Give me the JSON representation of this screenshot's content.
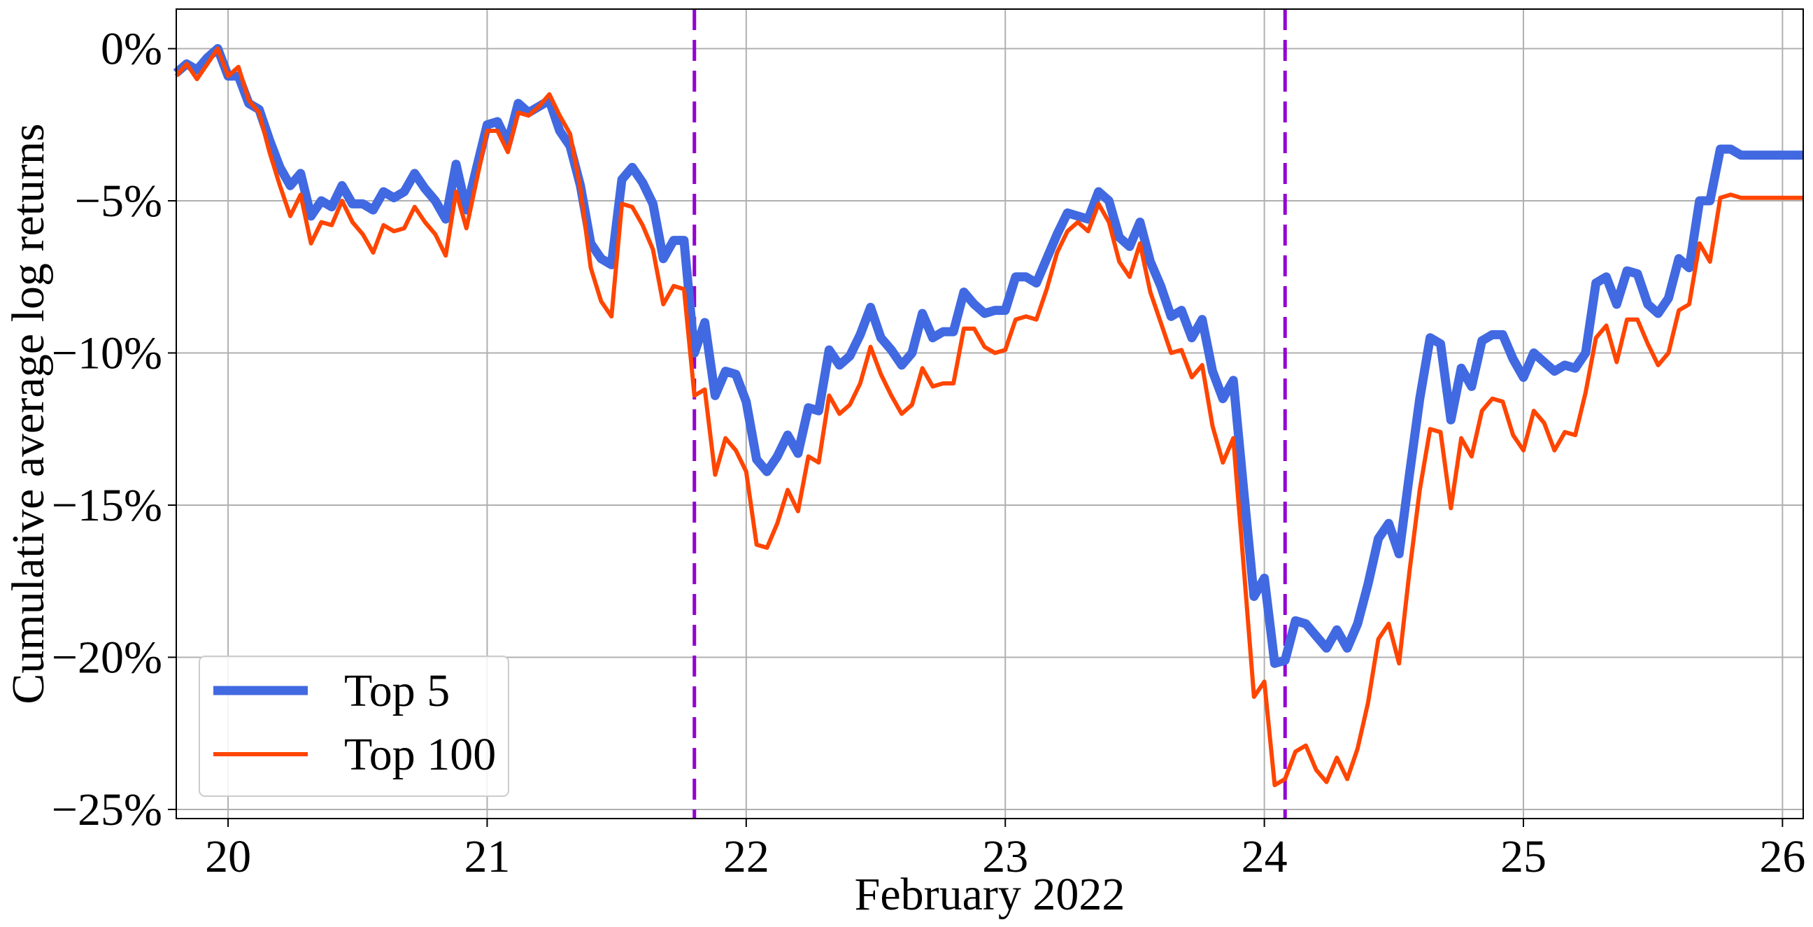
{
  "chart_data": {
    "type": "line",
    "title": "",
    "xlabel": "February 2022",
    "ylabel": "Cumulative average log returns",
    "xlim": [
      19.8,
      26.08
    ],
    "ylim": [
      -25.3,
      1.3
    ],
    "x_ticks": [
      20,
      21,
      22,
      23,
      24,
      25,
      26
    ],
    "x_tick_labels": [
      "20",
      "21",
      "22",
      "23",
      "24",
      "25",
      "26"
    ],
    "y_ticks": [
      0,
      -5,
      -10,
      -15,
      -20,
      -25
    ],
    "y_tick_labels": [
      "0%",
      "−5%",
      "−10%",
      "−15%",
      "−20%",
      "−25%"
    ],
    "grid": true,
    "legend_position": "lower-left",
    "vertical_lines": [
      21.8,
      24.08
    ],
    "series": [
      {
        "name": "Top 5",
        "color": "#4169E1",
        "points": [
          [
            19.8,
            -0.8
          ],
          [
            19.84,
            -0.5
          ],
          [
            19.88,
            -0.7
          ],
          [
            19.92,
            -0.3
          ],
          [
            19.96,
            0.0
          ],
          [
            20.0,
            -0.9
          ],
          [
            20.04,
            -0.9
          ],
          [
            20.08,
            -1.8
          ],
          [
            20.12,
            -2.0
          ],
          [
            20.16,
            -3.0
          ],
          [
            20.2,
            -3.9
          ],
          [
            20.24,
            -4.5
          ],
          [
            20.28,
            -4.1
          ],
          [
            20.32,
            -5.5
          ],
          [
            20.36,
            -5.0
          ],
          [
            20.4,
            -5.2
          ],
          [
            20.44,
            -4.5
          ],
          [
            20.48,
            -5.1
          ],
          [
            20.52,
            -5.1
          ],
          [
            20.56,
            -5.3
          ],
          [
            20.6,
            -4.7
          ],
          [
            20.64,
            -4.9
          ],
          [
            20.68,
            -4.7
          ],
          [
            20.72,
            -4.1
          ],
          [
            20.76,
            -4.6
          ],
          [
            20.8,
            -5.0
          ],
          [
            20.84,
            -5.6
          ],
          [
            20.88,
            -3.8
          ],
          [
            20.92,
            -5.3
          ],
          [
            20.96,
            -3.9
          ],
          [
            21.0,
            -2.5
          ],
          [
            21.04,
            -2.4
          ],
          [
            21.08,
            -3.1
          ],
          [
            21.12,
            -1.8
          ],
          [
            21.16,
            -2.1
          ],
          [
            21.2,
            -1.9
          ],
          [
            21.24,
            -1.7
          ],
          [
            21.28,
            -2.7
          ],
          [
            21.32,
            -3.2
          ],
          [
            21.36,
            -4.5
          ],
          [
            21.4,
            -6.4
          ],
          [
            21.44,
            -6.9
          ],
          [
            21.48,
            -7.1
          ],
          [
            21.52,
            -4.3
          ],
          [
            21.56,
            -3.9
          ],
          [
            21.6,
            -4.4
          ],
          [
            21.64,
            -5.1
          ],
          [
            21.68,
            -6.9
          ],
          [
            21.72,
            -6.3
          ],
          [
            21.76,
            -6.3
          ],
          [
            21.8,
            -10.0
          ],
          [
            21.84,
            -9.0
          ],
          [
            21.88,
            -11.4
          ],
          [
            21.92,
            -10.6
          ],
          [
            21.96,
            -10.7
          ],
          [
            22.0,
            -11.6
          ],
          [
            22.04,
            -13.5
          ],
          [
            22.08,
            -13.9
          ],
          [
            22.12,
            -13.4
          ],
          [
            22.16,
            -12.7
          ],
          [
            22.2,
            -13.3
          ],
          [
            22.24,
            -11.8
          ],
          [
            22.28,
            -11.9
          ],
          [
            22.32,
            -9.9
          ],
          [
            22.36,
            -10.4
          ],
          [
            22.4,
            -10.1
          ],
          [
            22.44,
            -9.4
          ],
          [
            22.48,
            -8.5
          ],
          [
            22.52,
            -9.5
          ],
          [
            22.56,
            -9.9
          ],
          [
            22.6,
            -10.4
          ],
          [
            22.64,
            -10.0
          ],
          [
            22.68,
            -8.7
          ],
          [
            22.72,
            -9.5
          ],
          [
            22.76,
            -9.3
          ],
          [
            22.8,
            -9.3
          ],
          [
            22.84,
            -8.0
          ],
          [
            22.88,
            -8.4
          ],
          [
            22.92,
            -8.7
          ],
          [
            22.96,
            -8.6
          ],
          [
            23.0,
            -8.6
          ],
          [
            23.04,
            -7.5
          ],
          [
            23.08,
            -7.5
          ],
          [
            23.12,
            -7.7
          ],
          [
            23.16,
            -6.9
          ],
          [
            23.2,
            -6.1
          ],
          [
            23.24,
            -5.4
          ],
          [
            23.28,
            -5.5
          ],
          [
            23.32,
            -5.6
          ],
          [
            23.36,
            -4.7
          ],
          [
            23.4,
            -5.0
          ],
          [
            23.44,
            -6.2
          ],
          [
            23.48,
            -6.5
          ],
          [
            23.52,
            -5.7
          ],
          [
            23.56,
            -7.0
          ],
          [
            23.6,
            -7.8
          ],
          [
            23.64,
            -8.8
          ],
          [
            23.68,
            -8.6
          ],
          [
            23.72,
            -9.5
          ],
          [
            23.76,
            -8.9
          ],
          [
            23.8,
            -10.6
          ],
          [
            23.84,
            -11.5
          ],
          [
            23.88,
            -10.9
          ],
          [
            23.92,
            -14.5
          ],
          [
            23.96,
            -18.0
          ],
          [
            24.0,
            -17.4
          ],
          [
            24.04,
            -20.2
          ],
          [
            24.08,
            -20.1
          ],
          [
            24.12,
            -18.8
          ],
          [
            24.16,
            -18.9
          ],
          [
            24.2,
            -19.3
          ],
          [
            24.24,
            -19.7
          ],
          [
            24.28,
            -19.1
          ],
          [
            24.32,
            -19.7
          ],
          [
            24.36,
            -18.9
          ],
          [
            24.4,
            -17.6
          ],
          [
            24.44,
            -16.1
          ],
          [
            24.48,
            -15.6
          ],
          [
            24.52,
            -16.6
          ],
          [
            24.56,
            -14.0
          ],
          [
            24.6,
            -11.5
          ],
          [
            24.64,
            -9.5
          ],
          [
            24.68,
            -9.7
          ],
          [
            24.72,
            -12.2
          ],
          [
            24.76,
            -10.5
          ],
          [
            24.8,
            -11.1
          ],
          [
            24.84,
            -9.6
          ],
          [
            24.88,
            -9.4
          ],
          [
            24.92,
            -9.4
          ],
          [
            24.96,
            -10.2
          ],
          [
            25.0,
            -10.8
          ],
          [
            25.04,
            -10.0
          ],
          [
            25.08,
            -10.3
          ],
          [
            25.12,
            -10.6
          ],
          [
            25.16,
            -10.4
          ],
          [
            25.2,
            -10.5
          ],
          [
            25.24,
            -10.0
          ],
          [
            25.28,
            -7.7
          ],
          [
            25.32,
            -7.5
          ],
          [
            25.36,
            -8.4
          ],
          [
            25.4,
            -7.3
          ],
          [
            25.44,
            -7.4
          ],
          [
            25.48,
            -8.4
          ],
          [
            25.52,
            -8.7
          ],
          [
            25.56,
            -8.2
          ],
          [
            25.6,
            -6.9
          ],
          [
            25.64,
            -7.2
          ],
          [
            25.68,
            -5.0
          ],
          [
            25.72,
            -5.0
          ],
          [
            25.76,
            -3.3
          ],
          [
            25.8,
            -3.3
          ],
          [
            25.84,
            -3.5
          ],
          [
            26.08,
            -3.5
          ]
        ]
      },
      {
        "name": "Top 100",
        "color": "#FF4500",
        "points": [
          [
            19.8,
            -0.9
          ],
          [
            19.84,
            -0.5
          ],
          [
            19.88,
            -1.0
          ],
          [
            19.92,
            -0.5
          ],
          [
            19.96,
            0.0
          ],
          [
            20.0,
            -0.9
          ],
          [
            20.04,
            -0.6
          ],
          [
            20.08,
            -1.7
          ],
          [
            20.12,
            -2.1
          ],
          [
            20.16,
            -3.4
          ],
          [
            20.2,
            -4.5
          ],
          [
            20.24,
            -5.5
          ],
          [
            20.28,
            -4.8
          ],
          [
            20.32,
            -6.4
          ],
          [
            20.36,
            -5.7
          ],
          [
            20.4,
            -5.8
          ],
          [
            20.44,
            -5.0
          ],
          [
            20.48,
            -5.7
          ],
          [
            20.52,
            -6.1
          ],
          [
            20.56,
            -6.7
          ],
          [
            20.6,
            -5.8
          ],
          [
            20.64,
            -6.0
          ],
          [
            20.68,
            -5.9
          ],
          [
            20.72,
            -5.2
          ],
          [
            20.76,
            -5.7
          ],
          [
            20.8,
            -6.1
          ],
          [
            20.84,
            -6.8
          ],
          [
            20.88,
            -4.7
          ],
          [
            20.92,
            -5.9
          ],
          [
            20.96,
            -4.3
          ],
          [
            21.0,
            -2.7
          ],
          [
            21.04,
            -2.7
          ],
          [
            21.08,
            -3.4
          ],
          [
            21.12,
            -2.1
          ],
          [
            21.16,
            -2.2
          ],
          [
            21.2,
            -1.9
          ],
          [
            21.24,
            -1.5
          ],
          [
            21.28,
            -2.2
          ],
          [
            21.32,
            -2.8
          ],
          [
            21.36,
            -4.6
          ],
          [
            21.4,
            -7.2
          ],
          [
            21.44,
            -8.3
          ],
          [
            21.48,
            -8.8
          ],
          [
            21.52,
            -5.1
          ],
          [
            21.56,
            -5.2
          ],
          [
            21.6,
            -5.8
          ],
          [
            21.64,
            -6.6
          ],
          [
            21.68,
            -8.4
          ],
          [
            21.72,
            -7.8
          ],
          [
            21.76,
            -7.9
          ],
          [
            21.8,
            -11.4
          ],
          [
            21.84,
            -11.2
          ],
          [
            21.88,
            -14.0
          ],
          [
            21.92,
            -12.8
          ],
          [
            21.96,
            -13.2
          ],
          [
            22.0,
            -13.9
          ],
          [
            22.04,
            -16.3
          ],
          [
            22.08,
            -16.4
          ],
          [
            22.12,
            -15.6
          ],
          [
            22.16,
            -14.5
          ],
          [
            22.2,
            -15.2
          ],
          [
            22.24,
            -13.4
          ],
          [
            22.28,
            -13.6
          ],
          [
            22.32,
            -11.4
          ],
          [
            22.36,
            -12.0
          ],
          [
            22.4,
            -11.7
          ],
          [
            22.44,
            -11.0
          ],
          [
            22.48,
            -9.8
          ],
          [
            22.52,
            -10.7
          ],
          [
            22.56,
            -11.4
          ],
          [
            22.6,
            -12.0
          ],
          [
            22.64,
            -11.7
          ],
          [
            22.68,
            -10.5
          ],
          [
            22.72,
            -11.1
          ],
          [
            22.76,
            -11.0
          ],
          [
            22.8,
            -11.0
          ],
          [
            22.84,
            -9.2
          ],
          [
            22.88,
            -9.2
          ],
          [
            22.92,
            -9.8
          ],
          [
            22.96,
            -10.0
          ],
          [
            23.0,
            -9.9
          ],
          [
            23.04,
            -8.9
          ],
          [
            23.08,
            -8.8
          ],
          [
            23.12,
            -8.9
          ],
          [
            23.16,
            -7.9
          ],
          [
            23.2,
            -6.7
          ],
          [
            23.24,
            -6.0
          ],
          [
            23.28,
            -5.7
          ],
          [
            23.32,
            -6.0
          ],
          [
            23.36,
            -5.1
          ],
          [
            23.4,
            -5.7
          ],
          [
            23.44,
            -7.0
          ],
          [
            23.48,
            -7.5
          ],
          [
            23.52,
            -6.4
          ],
          [
            23.56,
            -8.0
          ],
          [
            23.6,
            -9.0
          ],
          [
            23.64,
            -10.0
          ],
          [
            23.68,
            -9.9
          ],
          [
            23.72,
            -10.8
          ],
          [
            23.76,
            -10.4
          ],
          [
            23.8,
            -12.4
          ],
          [
            23.84,
            -13.6
          ],
          [
            23.88,
            -12.8
          ],
          [
            23.92,
            -17.0
          ],
          [
            23.96,
            -21.3
          ],
          [
            24.0,
            -20.8
          ],
          [
            24.04,
            -24.2
          ],
          [
            24.08,
            -24.0
          ],
          [
            24.12,
            -23.1
          ],
          [
            24.16,
            -22.9
          ],
          [
            24.2,
            -23.7
          ],
          [
            24.24,
            -24.1
          ],
          [
            24.28,
            -23.3
          ],
          [
            24.32,
            -24.0
          ],
          [
            24.36,
            -23.0
          ],
          [
            24.4,
            -21.5
          ],
          [
            24.44,
            -19.4
          ],
          [
            24.48,
            -18.9
          ],
          [
            24.52,
            -20.2
          ],
          [
            24.56,
            -17.2
          ],
          [
            24.6,
            -14.5
          ],
          [
            24.64,
            -12.5
          ],
          [
            24.68,
            -12.6
          ],
          [
            24.72,
            -15.1
          ],
          [
            24.76,
            -12.8
          ],
          [
            24.8,
            -13.4
          ],
          [
            24.84,
            -11.9
          ],
          [
            24.88,
            -11.5
          ],
          [
            24.92,
            -11.6
          ],
          [
            24.96,
            -12.7
          ],
          [
            25.0,
            -13.2
          ],
          [
            25.04,
            -11.9
          ],
          [
            25.08,
            -12.3
          ],
          [
            25.12,
            -13.2
          ],
          [
            25.16,
            -12.6
          ],
          [
            25.2,
            -12.7
          ],
          [
            25.24,
            -11.3
          ],
          [
            25.28,
            -9.5
          ],
          [
            25.32,
            -9.1
          ],
          [
            25.36,
            -10.3
          ],
          [
            25.4,
            -8.9
          ],
          [
            25.44,
            -8.9
          ],
          [
            25.48,
            -9.7
          ],
          [
            25.52,
            -10.4
          ],
          [
            25.56,
            -10.0
          ],
          [
            25.6,
            -8.6
          ],
          [
            25.64,
            -8.4
          ],
          [
            25.68,
            -6.4
          ],
          [
            25.72,
            -7.0
          ],
          [
            25.76,
            -4.9
          ],
          [
            25.8,
            -4.8
          ],
          [
            25.84,
            -4.9
          ],
          [
            26.08,
            -4.9
          ]
        ]
      }
    ]
  }
}
